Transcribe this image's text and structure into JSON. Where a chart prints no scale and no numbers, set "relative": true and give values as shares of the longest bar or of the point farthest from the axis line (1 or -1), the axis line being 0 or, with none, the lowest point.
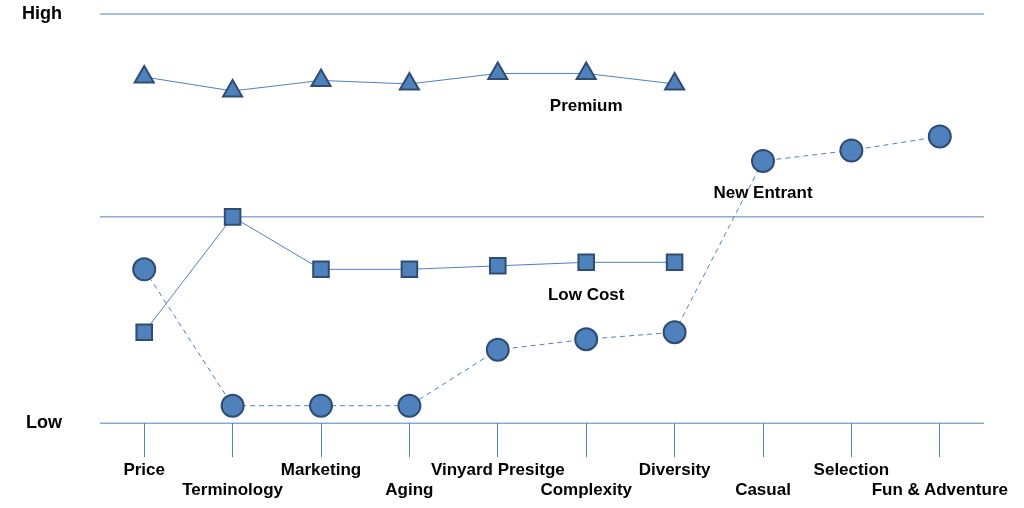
{
  "chart_data": {
    "type": "line",
    "relative": true,
    "categories": [
      "Price",
      "Terminology",
      "Marketing",
      "Aging",
      "Vinyard Presitge",
      "Complexity",
      "Diversity",
      "Casual",
      "Selection",
      "Fun & Adventure"
    ],
    "ref_lines": [
      {
        "axis": "y",
        "value": 1.17,
        "label": "High",
        "color": "#4f81bd"
      },
      {
        "axis": "y",
        "value": 0.59,
        "label": null,
        "color": "#4f81bd"
      },
      {
        "axis": "y",
        "value": 0,
        "label": "Low",
        "color": "#4f81bd"
      }
    ],
    "legend": false,
    "series": [
      {
        "name": "Premium",
        "color": "#4f81bd",
        "marker": "triangle",
        "line_style": "solid",
        "values": [
          0.99,
          0.95,
          0.98,
          0.97,
          1,
          1,
          0.97,
          null,
          null,
          null
        ]
      },
      {
        "name": "Low Cost",
        "color": "#4f81bd",
        "marker": "square",
        "line_style": "solid",
        "values": [
          0.26,
          0.59,
          0.44,
          0.44,
          0.45,
          0.46,
          0.46,
          null,
          null,
          null
        ]
      },
      {
        "name": "New Entrant",
        "color": "#4f81bd",
        "marker": "circle",
        "line_style": "dashed",
        "values": [
          0.44,
          0.05,
          0.05,
          0.05,
          0.21,
          0.24,
          0.26,
          0.75,
          0.78,
          0.82
        ]
      }
    ]
  }
}
